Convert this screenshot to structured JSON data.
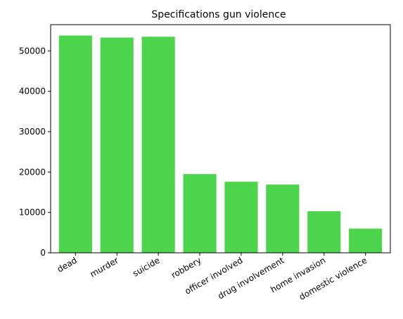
{
  "chart_data": {
    "type": "bar",
    "title": "Specifications gun violence",
    "xlabel": "",
    "ylabel": "",
    "categories": [
      "dead",
      "murder",
      "suicide",
      "robbery",
      "officer involved",
      "drug involvement",
      "home invasion",
      "domestic violence"
    ],
    "values": [
      53800,
      53300,
      53500,
      19500,
      17600,
      16900,
      10300,
      6000
    ],
    "ylim": [
      0,
      56500
    ],
    "yticks": [
      0,
      10000,
      20000,
      30000,
      40000,
      50000
    ],
    "bar_color": "#4cd44c",
    "grid": false,
    "legend": "none"
  }
}
